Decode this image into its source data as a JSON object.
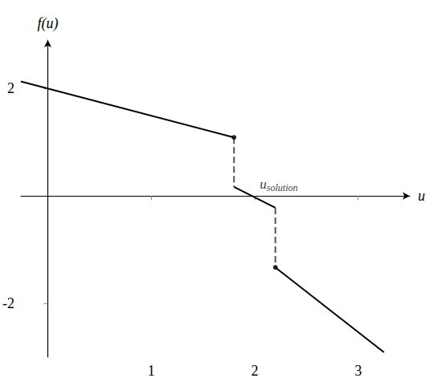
{
  "chart_data": {
    "type": "line",
    "xlabel": "u",
    "ylabel": "f(u)",
    "xlim": [
      -0.26,
      3.5
    ],
    "ylim": [
      -3,
      2.9
    ],
    "xticks": [
      1,
      2,
      3
    ],
    "yticks": [
      -2,
      2
    ],
    "grid": false,
    "color": "#000000",
    "series": [
      {
        "type": "line",
        "line_style": "solid",
        "x": [
          -0.26,
          1.8
        ],
        "values": [
          2.13,
          1.09
        ]
      },
      {
        "type": "line",
        "line_style": "dashed",
        "color": "#555555",
        "x": [
          1.8,
          1.8
        ],
        "values": [
          1.09,
          0.17
        ]
      },
      {
        "type": "line",
        "line_style": "solid",
        "x": [
          1.8,
          2.2
        ],
        "values": [
          0.17,
          -0.22
        ]
      },
      {
        "type": "line",
        "line_style": "dashed",
        "color": "#555555",
        "x": [
          2.2,
          2.2
        ],
        "values": [
          -0.22,
          -1.33
        ]
      },
      {
        "type": "line",
        "line_style": "solid",
        "x": [
          2.2,
          3.25
        ],
        "values": [
          -1.33,
          -2.91
        ]
      },
      {
        "type": "scatter",
        "marker": "circle",
        "x": [
          1.8,
          2.2
        ],
        "values": [
          1.09,
          -1.33
        ]
      }
    ],
    "annotations": [
      {
        "text": "u",
        "subscript": "solution",
        "x": 2.05,
        "y": 0.22
      }
    ]
  }
}
